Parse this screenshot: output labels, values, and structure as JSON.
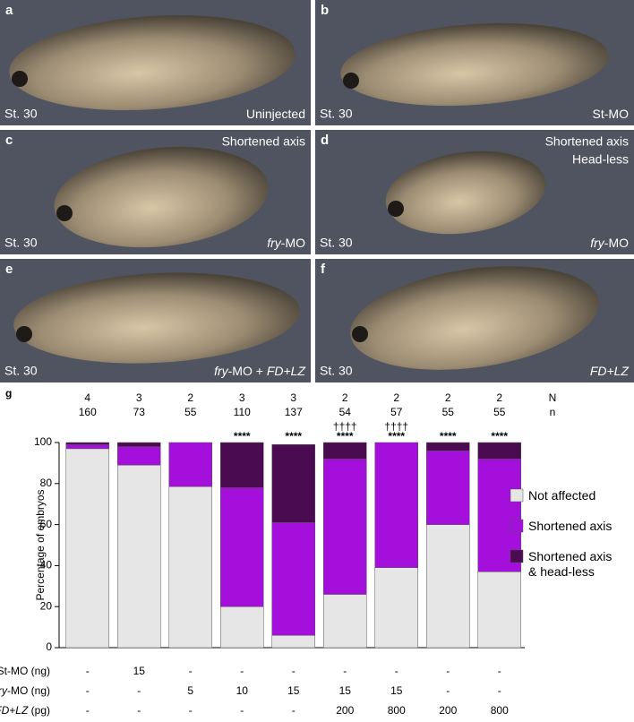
{
  "panels": [
    {
      "letter": "a",
      "stage": "St. 30",
      "annotation": [],
      "label": [
        {
          "text": "Uninjected",
          "italic": false
        }
      ]
    },
    {
      "letter": "b",
      "stage": "St. 30",
      "annotation": [],
      "label": [
        {
          "text": "St-MO",
          "italic": false
        }
      ]
    },
    {
      "letter": "c",
      "stage": "St. 30",
      "annotation": [
        "Shortened axis"
      ],
      "label": [
        {
          "text": "fry",
          "italic": true
        },
        {
          "text": "-MO",
          "italic": false
        }
      ]
    },
    {
      "letter": "d",
      "stage": "St. 30",
      "annotation": [
        "Shortened axis",
        "Head-less"
      ],
      "label": [
        {
          "text": "fry",
          "italic": true
        },
        {
          "text": "-MO",
          "italic": false
        }
      ]
    },
    {
      "letter": "e",
      "stage": "St. 30",
      "annotation": [],
      "label": [
        {
          "text": "fry",
          "italic": true
        },
        {
          "text": "-MO + ",
          "italic": false
        },
        {
          "text": "FD+LZ",
          "italic": true
        }
      ]
    },
    {
      "letter": "f",
      "stage": "St. 30",
      "annotation": [],
      "label": [
        {
          "text": "FD+LZ",
          "italic": true
        }
      ]
    }
  ],
  "chart_data": {
    "type": "stacked_bar",
    "letter": "g",
    "ylabel": "Percentage of embryos",
    "categories": [
      null,
      null,
      null,
      null,
      null,
      null,
      null,
      null,
      null
    ],
    "ylim": [
      0,
      100
    ],
    "yticks": [
      0,
      20,
      40,
      60,
      80,
      100
    ],
    "series": [
      {
        "name": "Not affected",
        "color": "#e6e6e6",
        "values": [
          97,
          89,
          78.5,
          20,
          6,
          26,
          39,
          60,
          37
        ]
      },
      {
        "name": "Shortened axis",
        "color": "#a40fdc",
        "values": [
          2,
          9,
          21.5,
          58,
          55,
          66,
          61,
          36,
          55
        ]
      },
      {
        "name": "Shortened axis & head-less",
        "color": "#4a0b50",
        "values": [
          1,
          2,
          0,
          22,
          38,
          8,
          0,
          4,
          8
        ]
      }
    ],
    "counts": [
      {
        "name": "N",
        "values": [
          4,
          3,
          2,
          3,
          3,
          2,
          2,
          2,
          2
        ]
      },
      {
        "name": "n",
        "values": [
          160,
          73,
          55,
          110,
          137,
          54,
          57,
          55,
          55
        ]
      }
    ],
    "daggers": [
      null,
      null,
      null,
      null,
      null,
      "††††",
      "††††",
      null,
      null
    ],
    "significance": [
      null,
      null,
      null,
      "****",
      "****",
      "****",
      "****",
      "****",
      "****"
    ],
    "conditions": [
      {
        "name": [
          {
            "text": "St-MO (ng)",
            "italic": false
          }
        ],
        "values": [
          "-",
          "15",
          "-",
          "-",
          "-",
          "-",
          "-",
          "-",
          "-"
        ]
      },
      {
        "name": [
          {
            "text": "fry",
            "italic": true
          },
          {
            "text": "-MO (ng)",
            "italic": false
          }
        ],
        "values": [
          "-",
          "-",
          "5",
          "10",
          "15",
          "15",
          "15",
          "-",
          "-"
        ]
      },
      {
        "name": [
          {
            "text": "FD+LZ",
            "italic": true
          },
          {
            "text": " (pg)",
            "italic": false
          }
        ],
        "values": [
          "-",
          "-",
          "-",
          "-",
          "-",
          "200",
          "800",
          "200",
          "800"
        ]
      }
    ]
  }
}
